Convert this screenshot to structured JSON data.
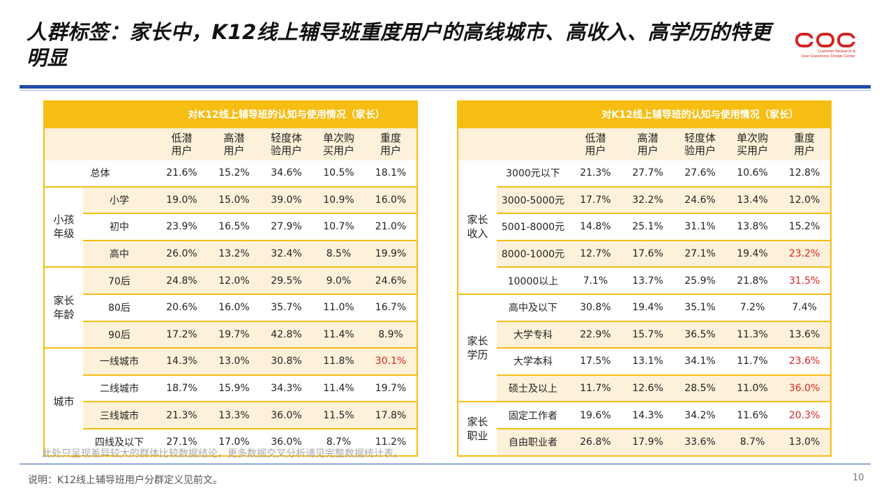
{
  "title": "人群标签：家长中，K12线上辅导班重度用户的高线城市、高收入、高学历的特更明显",
  "logo": {
    "mark": "CDC",
    "subtitle_line1": "Customer Research &",
    "subtitle_line2": "User Experience Design Center",
    "brand_color": "#d32424"
  },
  "colors": {
    "accent_yellow": "#f6bd13",
    "shade": "#fdf1d9",
    "highlight_red": "#e02222",
    "rule_blue": "#1f4aa8"
  },
  "column_headers": [
    [
      "低潜",
      "用户"
    ],
    [
      "高潜",
      "用户"
    ],
    [
      "轻度体",
      "验用户"
    ],
    [
      "单次购",
      "买用户"
    ],
    [
      "重度",
      "用户"
    ]
  ],
  "left_table": {
    "header": "对K12线上辅导班的认知与使用情况（家长）",
    "total": {
      "label": "总体",
      "values": [
        "21.6%",
        "15.2%",
        "34.6%",
        "10.5%",
        "18.1%"
      ]
    },
    "groups": [
      {
        "label_line1": "小孩",
        "label_line2": "年级",
        "rows": [
          {
            "label": "小学",
            "values": [
              "19.0%",
              "15.0%",
              "39.0%",
              "10.9%",
              "16.0%"
            ]
          },
          {
            "label": "初中",
            "values": [
              "23.9%",
              "16.5%",
              "27.9%",
              "10.7%",
              "21.0%"
            ]
          },
          {
            "label": "高中",
            "values": [
              "26.0%",
              "13.2%",
              "32.4%",
              "8.5%",
              "19.9%"
            ]
          }
        ]
      },
      {
        "label_line1": "家长",
        "label_line2": "年龄",
        "rows": [
          {
            "label": "70后",
            "values": [
              "24.8%",
              "12.0%",
              "29.5%",
              "9.0%",
              "24.6%"
            ]
          },
          {
            "label": "80后",
            "values": [
              "20.6%",
              "16.0%",
              "35.7%",
              "11.0%",
              "16.7%"
            ]
          },
          {
            "label": "90后",
            "values": [
              "17.2%",
              "19.7%",
              "42.8%",
              "11.4%",
              "8.9%"
            ]
          }
        ]
      },
      {
        "label_line1": "城市",
        "label_line2": "",
        "rows": [
          {
            "label": "一线城市",
            "values": [
              "14.3%",
              "13.0%",
              "30.8%",
              "11.8%",
              "30.1%"
            ],
            "red": 4
          },
          {
            "label": "二线城市",
            "values": [
              "18.7%",
              "15.9%",
              "34.3%",
              "11.4%",
              "19.7%"
            ]
          },
          {
            "label": "三线城市",
            "values": [
              "21.3%",
              "13.3%",
              "36.0%",
              "11.5%",
              "17.8%"
            ]
          },
          {
            "label": "四线及以下",
            "values": [
              "27.1%",
              "17.0%",
              "36.0%",
              "8.7%",
              "11.2%"
            ]
          }
        ]
      }
    ]
  },
  "right_table": {
    "header": "对K12线上辅导班的认知与使用情况（家长）",
    "groups": [
      {
        "label_line1": "家长",
        "label_line2": "收入",
        "rows": [
          {
            "label": "3000元以下",
            "values": [
              "21.3%",
              "27.7%",
              "27.6%",
              "10.6%",
              "12.8%"
            ]
          },
          {
            "label": "3000-5000元",
            "values": [
              "17.7%",
              "32.2%",
              "24.6%",
              "13.4%",
              "12.0%"
            ]
          },
          {
            "label": "5001-8000元",
            "values": [
              "14.8%",
              "25.1%",
              "31.1%",
              "13.8%",
              "15.2%"
            ]
          },
          {
            "label": "8000-1000元",
            "values": [
              "12.7%",
              "17.6%",
              "27.1%",
              "19.4%",
              "23.2%"
            ],
            "red": 4
          },
          {
            "label": "10000以上",
            "values": [
              "7.1%",
              "13.7%",
              "25.9%",
              "21.8%",
              "31.5%"
            ],
            "red": 4
          }
        ]
      },
      {
        "label_line1": "家长",
        "label_line2": "学历",
        "rows": [
          {
            "label": "高中及以下",
            "values": [
              "30.8%",
              "19.4%",
              "35.1%",
              "7.2%",
              "7.4%"
            ]
          },
          {
            "label": "大学专科",
            "values": [
              "22.9%",
              "15.7%",
              "36.5%",
              "11.3%",
              "13.6%"
            ]
          },
          {
            "label": "大学本科",
            "values": [
              "17.5%",
              "13.1%",
              "34.1%",
              "11.7%",
              "23.6%"
            ],
            "red": 4
          },
          {
            "label": "硕士及以上",
            "values": [
              "11.7%",
              "12.6%",
              "28.5%",
              "11.0%",
              "36.0%"
            ],
            "red": 4
          }
        ]
      },
      {
        "label_line1": "家长",
        "label_line2": "职业",
        "rows": [
          {
            "label": "固定工作者",
            "values": [
              "19.6%",
              "14.3%",
              "34.2%",
              "11.6%",
              "20.3%"
            ],
            "red": 4
          },
          {
            "label": "自由职业者",
            "values": [
              "26.8%",
              "17.9%",
              "33.6%",
              "8.7%",
              "13.0%"
            ]
          }
        ]
      }
    ]
  },
  "note": "此处只呈现差异较大的群体比较数据结论，更多数据交叉分析请见完整数据统计表。",
  "footer": "说明：K12线上辅导班用户分群定义见前文。",
  "page_number": "10"
}
